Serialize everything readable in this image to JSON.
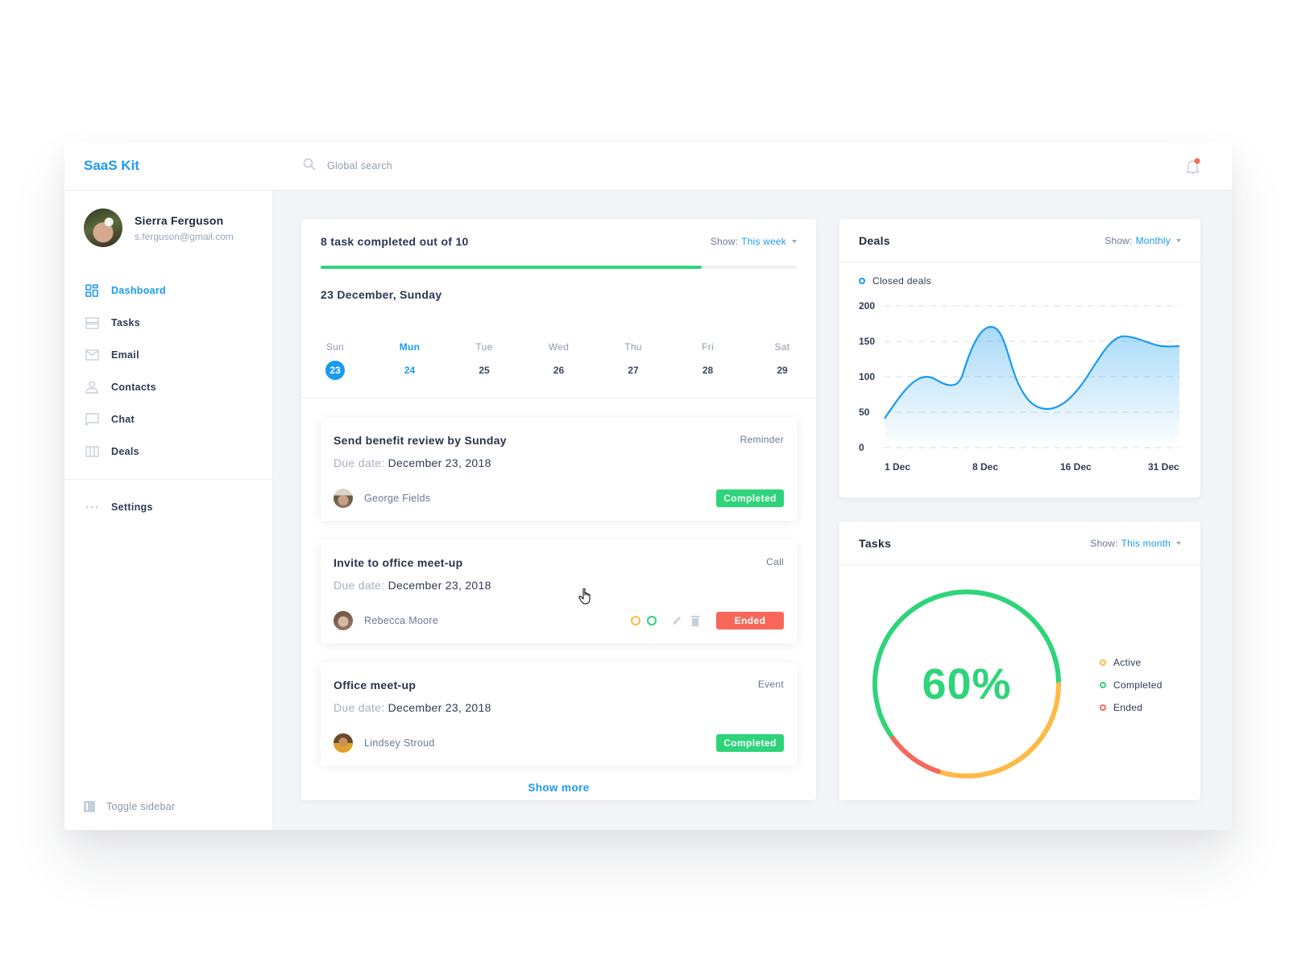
{
  "app": {
    "brand": "SaaS Kit"
  },
  "user": {
    "name": "Sierra Ferguson",
    "email": "s.ferguson@gmail.com"
  },
  "sidebar": {
    "items": [
      {
        "label": "Dashboard",
        "icon": "dashboard-icon",
        "active": true
      },
      {
        "label": "Tasks",
        "icon": "tasks-icon"
      },
      {
        "label": "Email",
        "icon": "email-icon"
      },
      {
        "label": "Contacts",
        "icon": "contacts-icon"
      },
      {
        "label": "Chat",
        "icon": "chat-icon"
      },
      {
        "label": "Deals",
        "icon": "deals-icon"
      }
    ],
    "settings": "Settings",
    "toggle": "Toggle sidebar"
  },
  "topbar": {
    "search_placeholder": "Global search",
    "notification_dot": true
  },
  "tasks_panel": {
    "summary": "8 task completed out of 10",
    "completed": 8,
    "total": 10,
    "show_label": "Show:",
    "show_value": "This week",
    "date_title": "23 December, Sunday",
    "week": [
      {
        "name": "Sun",
        "num": "23",
        "selected": true
      },
      {
        "name": "Mun",
        "num": "24",
        "current": true
      },
      {
        "name": "Tue",
        "num": "25"
      },
      {
        "name": "Wed",
        "num": "26"
      },
      {
        "name": "Thu",
        "num": "27"
      },
      {
        "name": "Fri",
        "num": "28"
      },
      {
        "name": "Sat",
        "num": "29"
      }
    ],
    "tasks": [
      {
        "title": "Send benefit review by Sunday",
        "type": "Reminder",
        "due_label": "Due date:",
        "due": "December 23, 2018",
        "person": "George Fields",
        "status": "Completed"
      },
      {
        "title": "Invite to office meet-up",
        "type": "Call",
        "due_label": "Due date:",
        "due": "December 23, 2018",
        "person": "Rebecca Moore",
        "status": "Ended"
      },
      {
        "title": "Office meet-up",
        "type": "Event",
        "due_label": "Due date:",
        "due": "December 23, 2018",
        "person": "Lindsey Stroud",
        "status": "Completed"
      }
    ],
    "show_more": "Show more"
  },
  "deals": {
    "title": "Deals",
    "show_label": "Show:",
    "show_value": "Monthly",
    "legend": "Closed deals"
  },
  "task_stats": {
    "title": "Tasks",
    "show_label": "Show:",
    "show_value": "This month",
    "percent": "60%",
    "legend": [
      {
        "label": "Active",
        "color": "#ffb946"
      },
      {
        "label": "Completed",
        "color": "#2ed47a"
      },
      {
        "label": "Ended",
        "color": "#f7685b"
      }
    ]
  },
  "colors": {
    "accent": "#1a9bef",
    "green": "#2ed47a",
    "orange": "#ffb946",
    "red": "#f7685b"
  },
  "chart_data": [
    {
      "type": "area",
      "title": "Deals",
      "series": [
        {
          "name": "Closed deals",
          "x": [
            "1 Dec",
            "4 Dec",
            "6 Dec",
            "9 Dec",
            "13 Dec",
            "20 Dec",
            "26 Dec",
            "31 Dec"
          ],
          "values": [
            45,
            100,
            90,
            170,
            57,
            162,
            150,
            148
          ]
        }
      ],
      "xticks": [
        "1 Dec",
        "8 Dec",
        "16 Dec",
        "31 Dec"
      ],
      "yticks": [
        0,
        50,
        100,
        150,
        200
      ],
      "ylim": [
        0,
        200
      ],
      "grid": "dashed horizontal",
      "legend_position": "top-left"
    },
    {
      "type": "pie",
      "title": "Tasks",
      "categories": [
        "Completed",
        "Active",
        "Ended"
      ],
      "values": [
        60,
        30,
        10
      ],
      "center_label": "60%"
    }
  ]
}
